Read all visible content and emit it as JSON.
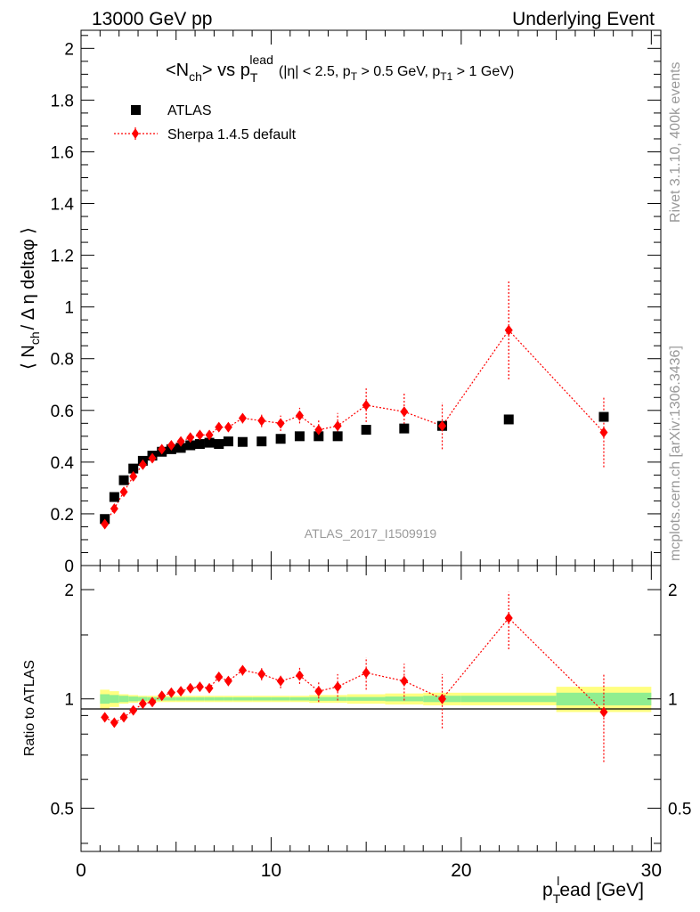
{
  "header": {
    "left": "13000 GeV pp",
    "right": "Underlying Event"
  },
  "side_labels": {
    "rivet": "Rivet 3.1.10,  400k events",
    "mcplots": "mcplots.cern.ch [arXiv:1306.3436]"
  },
  "colors": {
    "data": "#000000",
    "mc": "#ff0000",
    "band_inner": "#90ee90",
    "band_outer": "#ffff80",
    "watermark": "#999999"
  },
  "chart_data": [
    {
      "type": "scatter",
      "panel": "main",
      "title_parts": {
        "a": "<N",
        "a_sub": "ch",
        "b": "> vs p",
        "b_sub": "T",
        "b_sup": "lead",
        "cuts_1": "(|η| < 2.5, p",
        "cuts_1_sub": "T",
        "cuts_2": " > 0.5 GeV, p",
        "cuts_2_sub": "T1",
        "cuts_3": " > 1 GeV)"
      },
      "ylabel_parts": {
        "a": "⟨ N",
        "a_sub": "ch",
        "b": "/ Δ η deltaφ ⟩"
      },
      "watermark": "ATLAS_2017_I1509919",
      "xlim": [
        0,
        30.5
      ],
      "ylim": [
        0,
        2.07
      ],
      "y_ticks": [
        0,
        0.2,
        0.4,
        0.6,
        0.8,
        1,
        1.2,
        1.4,
        1.6,
        1.8,
        2
      ],
      "y_tick_labels": [
        "0",
        "0.2",
        "0.4",
        "0.6",
        "0.8",
        "1",
        "1.2",
        "1.4",
        "1.6",
        "1.8",
        "2"
      ],
      "legend_position": "top-left",
      "series": [
        {
          "name": "ATLAS",
          "marker": "square",
          "x": [
            1.25,
            1.75,
            2.25,
            2.75,
            3.25,
            3.75,
            4.25,
            4.75,
            5.25,
            5.75,
            6.25,
            6.75,
            7.25,
            7.75,
            8.5,
            9.5,
            10.5,
            11.5,
            12.5,
            13.5,
            15,
            17,
            19,
            22.5,
            27.5
          ],
          "y": [
            0.18,
            0.265,
            0.33,
            0.375,
            0.405,
            0.425,
            0.44,
            0.45,
            0.455,
            0.465,
            0.47,
            0.475,
            0.47,
            0.48,
            0.478,
            0.48,
            0.49,
            0.5,
            0.5,
            0.5,
            0.525,
            0.53,
            0.54,
            0.565,
            0.575
          ]
        },
        {
          "name": "Sherpa 1.4.5 default",
          "marker": "diamond",
          "x": [
            1.25,
            1.75,
            2.25,
            2.75,
            3.25,
            3.75,
            4.25,
            4.75,
            5.25,
            5.75,
            6.25,
            6.75,
            7.25,
            7.75,
            8.5,
            9.5,
            10.5,
            11.5,
            12.5,
            13.5,
            15,
            17,
            19,
            22.5,
            27.5
          ],
          "y": [
            0.16,
            0.22,
            0.285,
            0.345,
            0.39,
            0.415,
            0.45,
            0.465,
            0.48,
            0.495,
            0.505,
            0.505,
            0.535,
            0.535,
            0.57,
            0.56,
            0.55,
            0.58,
            0.525,
            0.54,
            0.62,
            0.595,
            0.54,
            0.91,
            0.515
          ],
          "yerr": [
            0.005,
            0.005,
            0.005,
            0.006,
            0.007,
            0.008,
            0.009,
            0.01,
            0.011,
            0.012,
            0.013,
            0.014,
            0.016,
            0.018,
            0.02,
            0.025,
            0.03,
            0.03,
            0.04,
            0.05,
            0.065,
            0.075,
            0.09,
            0.19,
            0.135
          ]
        }
      ]
    },
    {
      "type": "scatter",
      "panel": "ratio",
      "ylabel": "Ratio to ATLAS",
      "xlabel_parts": {
        "a": "p",
        "a_sub": "T",
        "a_sup": "l",
        "b": "ead [GeV]"
      },
      "xlim": [
        0,
        30.5
      ],
      "ylim": [
        0.38,
        2.33
      ],
      "x_ticks": [
        0,
        10,
        20,
        30
      ],
      "x_tick_labels": [
        "0",
        "10",
        "20",
        "30"
      ],
      "y_ticks": [
        0.5,
        1,
        2
      ],
      "y_tick_labels": [
        "0.5",
        "1",
        "2"
      ],
      "band_edges": [
        1,
        1.5,
        2,
        2.5,
        3,
        3.5,
        4,
        4.5,
        5,
        5.5,
        6,
        6.5,
        7,
        7.5,
        8,
        9,
        10,
        11,
        12,
        13,
        14,
        16,
        18,
        20,
        25,
        30
      ],
      "band_inner": [
        0.03,
        0.025,
        0.02,
        0.015,
        0.012,
        0.01,
        0.01,
        0.01,
        0.01,
        0.01,
        0.01,
        0.01,
        0.01,
        0.01,
        0.01,
        0.01,
        0.01,
        0.01,
        0.012,
        0.012,
        0.012,
        0.015,
        0.02,
        0.02,
        0.04
      ],
      "band_outer": [
        0.06,
        0.05,
        0.03,
        0.025,
        0.02,
        0.02,
        0.02,
        0.02,
        0.02,
        0.02,
        0.02,
        0.02,
        0.02,
        0.02,
        0.02,
        0.02,
        0.02,
        0.02,
        0.025,
        0.025,
        0.03,
        0.035,
        0.04,
        0.04,
        0.08
      ],
      "series": [
        {
          "name": "Sherpa 1.4.5 default",
          "marker": "diamond",
          "x": [
            1.25,
            1.75,
            2.25,
            2.75,
            3.25,
            3.75,
            4.25,
            4.75,
            5.25,
            5.75,
            6.25,
            6.75,
            7.25,
            7.75,
            8.5,
            9.5,
            10.5,
            11.5,
            12.5,
            13.5,
            15,
            17,
            19,
            22.5,
            27.5
          ],
          "y": [
            0.89,
            0.86,
            0.89,
            0.93,
            0.97,
            0.98,
            1.02,
            1.04,
            1.05,
            1.07,
            1.08,
            1.07,
            1.15,
            1.12,
            1.2,
            1.17,
            1.12,
            1.16,
            1.05,
            1.08,
            1.18,
            1.12,
            1.0,
            1.67,
            0.92
          ],
          "yerr": [
            0.01,
            0.01,
            0.01,
            0.01,
            0.01,
            0.012,
            0.013,
            0.015,
            0.016,
            0.018,
            0.02,
            0.022,
            0.03,
            0.035,
            0.04,
            0.045,
            0.05,
            0.06,
            0.07,
            0.09,
            0.12,
            0.13,
            0.17,
            0.3,
            0.25
          ]
        }
      ]
    }
  ]
}
